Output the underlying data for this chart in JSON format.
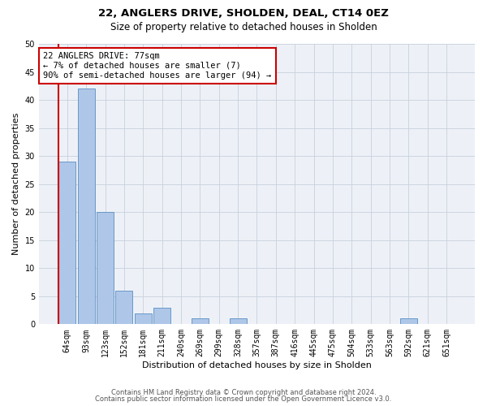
{
  "title1": "22, ANGLERS DRIVE, SHOLDEN, DEAL, CT14 0EZ",
  "title2": "Size of property relative to detached houses in Sholden",
  "xlabel": "Distribution of detached houses by size in Sholden",
  "ylabel": "Number of detached properties",
  "categories": [
    "64sqm",
    "93sqm",
    "123sqm",
    "152sqm",
    "181sqm",
    "211sqm",
    "240sqm",
    "269sqm",
    "299sqm",
    "328sqm",
    "357sqm",
    "387sqm",
    "416sqm",
    "445sqm",
    "475sqm",
    "504sqm",
    "533sqm",
    "563sqm",
    "592sqm",
    "621sqm",
    "651sqm"
  ],
  "values": [
    29,
    42,
    20,
    6,
    2,
    3,
    0,
    1,
    0,
    1,
    0,
    0,
    0,
    0,
    0,
    0,
    0,
    0,
    1,
    0,
    0
  ],
  "bar_color": "#aec6e8",
  "bar_edge_color": "#5a8fc2",
  "property_line_color": "#cc0000",
  "annotation_line1": "22 ANGLERS DRIVE: 77sqm",
  "annotation_line2": "← 7% of detached houses are smaller (7)",
  "annotation_line3": "90% of semi-detached houses are larger (94) →",
  "annotation_box_color": "#ffffff",
  "annotation_box_edge": "#cc0000",
  "ylim": [
    0,
    50
  ],
  "yticks": [
    0,
    5,
    10,
    15,
    20,
    25,
    30,
    35,
    40,
    45,
    50
  ],
  "footer1": "Contains HM Land Registry data © Crown copyright and database right 2024.",
  "footer2": "Contains public sector information licensed under the Open Government Licence v3.0.",
  "grid_color": "#c8d0dc",
  "bg_color": "#edf1f7",
  "title1_fontsize": 9.5,
  "title2_fontsize": 8.5,
  "axis_label_fontsize": 8,
  "tick_fontsize": 7,
  "annotation_fontsize": 7.5,
  "footer_fontsize": 6
}
